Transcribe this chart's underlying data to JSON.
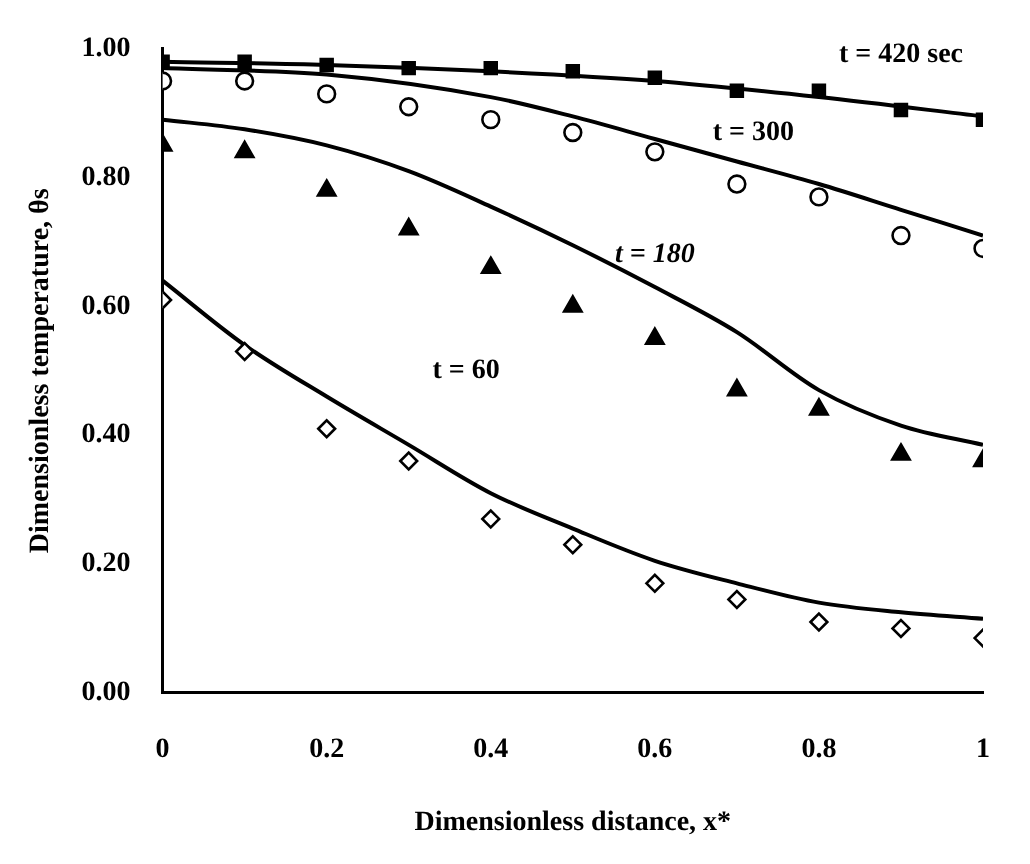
{
  "chart_data": {
    "type": "scatter",
    "xlabel": "Dimensionless distance, x*",
    "ylabel": "Dimensionless temperature, θs",
    "xlim": [
      0,
      1
    ],
    "ylim": [
      0,
      1
    ],
    "xticks": [
      0,
      0.2,
      0.4,
      0.6,
      0.8,
      1
    ],
    "yticks": [
      {
        "value": 0,
        "label": "0.00"
      },
      {
        "value": 0.2,
        "label": "0.20"
      },
      {
        "value": 0.4,
        "label": "0.40"
      },
      {
        "value": 0.6,
        "label": "0.60"
      },
      {
        "value": 0.8,
        "label": "0.80"
      },
      {
        "value": 1,
        "label": "1.00"
      }
    ],
    "grid": false,
    "legend": false,
    "series": [
      {
        "type": "scatter",
        "marker": "square",
        "color": "#000000",
        "x": [
          0,
          0.1,
          0.2,
          0.3,
          0.4,
          0.5,
          0.6,
          0.7,
          0.8,
          0.9,
          1
        ],
        "values": [
          0.98,
          0.98,
          0.975,
          0.97,
          0.97,
          0.965,
          0.955,
          0.935,
          0.935,
          0.905,
          0.89
        ]
      },
      {
        "type": "scatter",
        "marker": "circle",
        "color": "#000000",
        "x": [
          0,
          0.1,
          0.2,
          0.3,
          0.4,
          0.5,
          0.6,
          0.7,
          0.8,
          0.9,
          1
        ],
        "values": [
          0.95,
          0.95,
          0.93,
          0.91,
          0.89,
          0.87,
          0.84,
          0.79,
          0.77,
          0.71,
          0.69
        ]
      },
      {
        "type": "scatter",
        "marker": "triangle",
        "color": "#000000",
        "x": [
          0,
          0.1,
          0.2,
          0.3,
          0.4,
          0.5,
          0.6,
          0.7,
          0.8,
          0.9,
          1
        ],
        "values": [
          0.85,
          0.84,
          0.78,
          0.72,
          0.66,
          0.6,
          0.55,
          0.47,
          0.44,
          0.37,
          0.36
        ]
      },
      {
        "type": "scatter",
        "marker": "diamond",
        "color": "#000000",
        "x": [
          0,
          0.1,
          0.2,
          0.3,
          0.4,
          0.5,
          0.6,
          0.7,
          0.8,
          0.9,
          1
        ],
        "values": [
          0.61,
          0.53,
          0.41,
          0.36,
          0.27,
          0.23,
          0.17,
          0.145,
          0.11,
          0.1,
          0.085
        ]
      },
      {
        "type": "line",
        "marker": "none",
        "line_style": "solid",
        "color": "#000000",
        "x": [
          0,
          0.2,
          0.4,
          0.6,
          0.8,
          1
        ],
        "values": [
          0.98,
          0.975,
          0.965,
          0.95,
          0.925,
          0.895
        ]
      },
      {
        "type": "line",
        "marker": "none",
        "line_style": "solid",
        "color": "#000000",
        "x": [
          0,
          0.2,
          0.4,
          0.5,
          0.6,
          0.7,
          0.8,
          0.9,
          1
        ],
        "values": [
          0.97,
          0.96,
          0.925,
          0.895,
          0.86,
          0.825,
          0.79,
          0.75,
          0.71
        ]
      },
      {
        "type": "line",
        "marker": "none",
        "line_style": "solid",
        "color": "#000000",
        "x": [
          0,
          0.1,
          0.2,
          0.3,
          0.4,
          0.5,
          0.6,
          0.7,
          0.8,
          0.9,
          1
        ],
        "values": [
          0.89,
          0.875,
          0.85,
          0.81,
          0.755,
          0.695,
          0.63,
          0.56,
          0.47,
          0.415,
          0.385
        ]
      },
      {
        "type": "line",
        "marker": "none",
        "line_style": "solid",
        "color": "#000000",
        "x": [
          0,
          0.1,
          0.2,
          0.3,
          0.4,
          0.5,
          0.6,
          0.7,
          0.8,
          0.9,
          1
        ],
        "values": [
          0.64,
          0.54,
          0.46,
          0.385,
          0.31,
          0.255,
          0.205,
          0.17,
          0.14,
          0.125,
          0.115
        ]
      }
    ],
    "annotations": [
      "t = 420 sec",
      "t = 300",
      "t = 180",
      "t = 60"
    ]
  }
}
